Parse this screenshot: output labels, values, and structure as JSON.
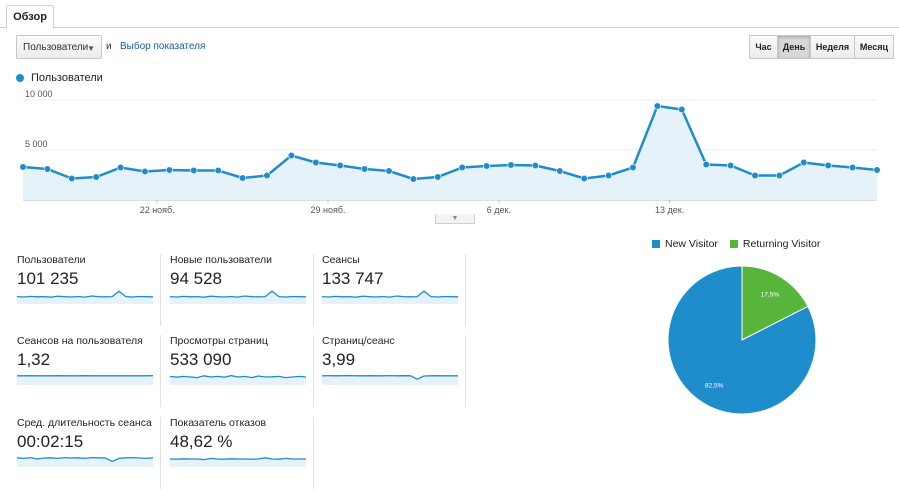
{
  "tab": {
    "label": "Обзор"
  },
  "controls": {
    "metric_value": "Пользователи",
    "and_text": "и",
    "metric_link": "Выбор показателя",
    "period_buttons": [
      "Час",
      "День",
      "Неделя",
      "Месяц"
    ],
    "period_active": "День"
  },
  "colors": {
    "accent": "#1f8dcc",
    "fill": "#e6f2fa",
    "returning": "#57b53b"
  },
  "chart_data": [
    {
      "type": "area",
      "series": [
        {
          "name": "Пользователи",
          "values": [
            3300,
            3100,
            2150,
            2300,
            3250,
            2850,
            3000,
            2950,
            2950,
            2200,
            2450,
            4450,
            3750,
            3450,
            3100,
            2900,
            2100,
            2300,
            3250,
            3400,
            3500,
            3450,
            2900,
            2150,
            2450,
            3250,
            9400,
            9050,
            3550,
            3450,
            2450,
            2450,
            3750,
            3450,
            3250,
            3000
          ]
        }
      ],
      "yticks": [
        "10 000",
        "5 000"
      ],
      "ylim": [
        0,
        10000
      ],
      "xticks": [
        "22 нояб.",
        "29 нояб.",
        "6 дек.",
        "13 дек."
      ],
      "xtick_index": [
        5.5,
        12.5,
        19.5,
        26.5
      ],
      "grid": true
    },
    {
      "type": "pie",
      "slices": [
        {
          "name": "New Visitor",
          "value": 82.5,
          "label": "82,5%"
        },
        {
          "name": "Returning Visitor",
          "value": 17.5,
          "label": "17,5%"
        }
      ],
      "legend": "top"
    }
  ],
  "metrics": [
    {
      "label": "Пользователи",
      "value": "101 235",
      "spark": [
        0.45,
        0.42,
        0.47,
        0.43,
        0.45,
        0.4,
        0.48,
        0.44,
        0.42,
        0.46,
        0.41,
        0.5,
        0.44,
        0.43,
        0.45,
        0.9,
        0.45,
        0.42,
        0.46,
        0.44,
        0.43
      ]
    },
    {
      "label": "Новые пользователи",
      "value": "94 528",
      "spark": [
        0.45,
        0.42,
        0.47,
        0.43,
        0.45,
        0.4,
        0.48,
        0.44,
        0.42,
        0.46,
        0.41,
        0.5,
        0.44,
        0.43,
        0.45,
        0.9,
        0.45,
        0.42,
        0.46,
        0.44,
        0.43
      ]
    },
    {
      "label": "Сеансы",
      "value": "133 747",
      "spark": [
        0.45,
        0.42,
        0.47,
        0.43,
        0.45,
        0.4,
        0.48,
        0.44,
        0.42,
        0.46,
        0.41,
        0.5,
        0.44,
        0.43,
        0.45,
        0.9,
        0.45,
        0.42,
        0.46,
        0.44,
        0.43
      ]
    },
    {
      "label": "Сеансов на пользователя",
      "value": "1,32",
      "spark": [
        0.6,
        0.6,
        0.61,
        0.6,
        0.6,
        0.6,
        0.61,
        0.6,
        0.6,
        0.6,
        0.61,
        0.6,
        0.6,
        0.6,
        0.6,
        0.6,
        0.6,
        0.6,
        0.6,
        0.6,
        0.61
      ]
    },
    {
      "label": "Просмотры страниц",
      "value": "533 090",
      "spark": [
        0.55,
        0.48,
        0.55,
        0.5,
        0.45,
        0.6,
        0.5,
        0.55,
        0.48,
        0.62,
        0.5,
        0.55,
        0.45,
        0.58,
        0.5,
        0.52,
        0.55,
        0.45,
        0.5,
        0.55,
        0.5
      ]
    },
    {
      "label": "Страниц/сеанс",
      "value": "3,99",
      "spark": [
        0.6,
        0.62,
        0.6,
        0.61,
        0.62,
        0.6,
        0.6,
        0.61,
        0.6,
        0.6,
        0.62,
        0.6,
        0.61,
        0.6,
        0.32,
        0.58,
        0.6,
        0.61,
        0.6,
        0.6,
        0.6
      ]
    },
    {
      "label": "Сред. длительность сеанса",
      "value": "00:02:15",
      "spark": [
        0.6,
        0.55,
        0.62,
        0.5,
        0.58,
        0.6,
        0.55,
        0.62,
        0.58,
        0.6,
        0.55,
        0.62,
        0.6,
        0.58,
        0.3,
        0.55,
        0.6,
        0.62,
        0.58,
        0.55,
        0.6
      ]
    },
    {
      "label": "Показатель отказов",
      "value": "48,62 %",
      "spark": [
        0.5,
        0.48,
        0.52,
        0.5,
        0.5,
        0.45,
        0.55,
        0.5,
        0.48,
        0.52,
        0.5,
        0.5,
        0.48,
        0.5,
        0.6,
        0.5,
        0.48,
        0.55,
        0.5,
        0.5,
        0.5
      ]
    }
  ]
}
